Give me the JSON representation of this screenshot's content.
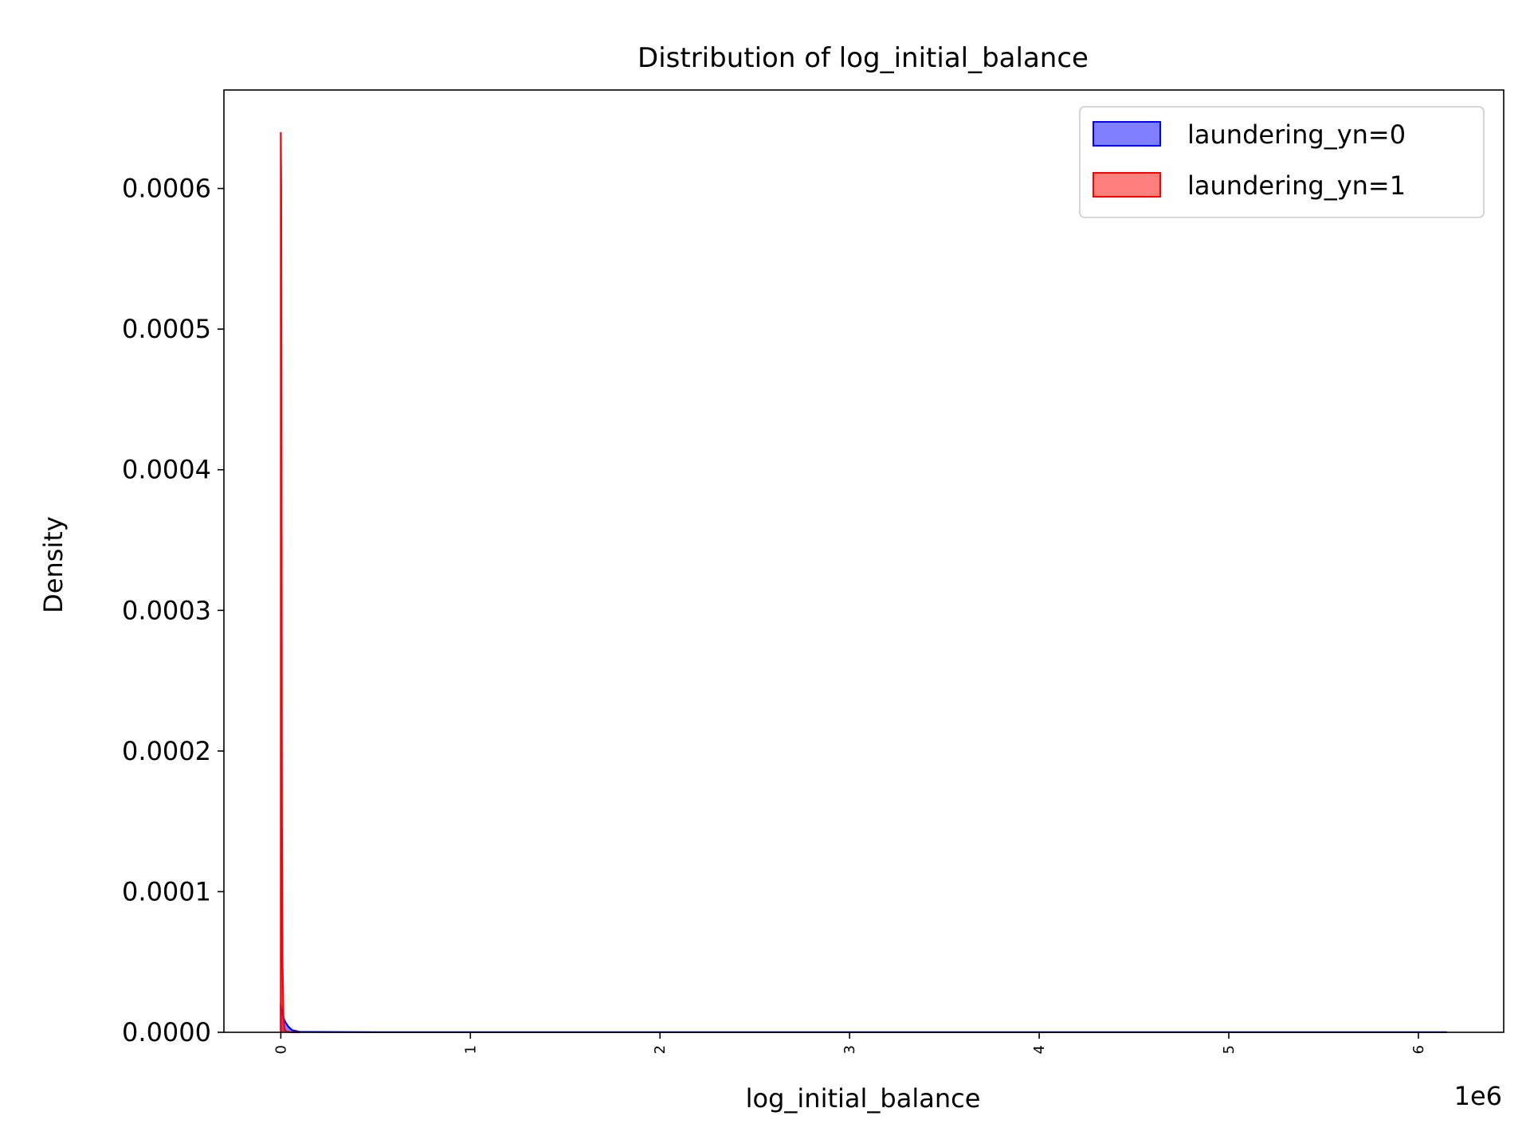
{
  "chart_data": {
    "type": "area",
    "title": "Distribution of log_initial_balance",
    "xlabel": "log_initial_balance",
    "ylabel": "Density",
    "x_offset_label": "1e6",
    "xlim": [
      -300000,
      6450000
    ],
    "ylim": [
      0,
      0.00067
    ],
    "x_ticks": [
      0,
      1000000,
      2000000,
      3000000,
      4000000,
      5000000,
      6000000
    ],
    "x_tick_labels": [
      "0",
      "1",
      "2",
      "3",
      "4",
      "5",
      "6"
    ],
    "y_ticks": [
      0,
      0.0001,
      0.0002,
      0.0003,
      0.0004,
      0.0005,
      0.0006
    ],
    "y_tick_labels": [
      "0.0000",
      "0.0001",
      "0.0002",
      "0.0003",
      "0.0004",
      "0.0005",
      "0.0006"
    ],
    "grid": false,
    "legend_position": "top-right",
    "series": [
      {
        "name": "laundering_yn=0",
        "color": "#0000ff",
        "x": [
          0,
          5000,
          15000,
          25000,
          40000,
          60000,
          100000,
          500000,
          1000000,
          3000000,
          6150000
        ],
        "y": [
          2e-05,
          1.5e-05,
          1e-05,
          7e-06,
          4e-06,
          1.5e-06,
          3e-07,
          1e-07,
          1e-07,
          1e-07,
          1e-07
        ]
      },
      {
        "name": "laundering_yn=1",
        "color": "#ff0000",
        "x": [
          0,
          2000,
          4000,
          6000,
          9000,
          14000,
          20000,
          30000,
          50000,
          100000
        ],
        "y": [
          0.00064,
          0.0006,
          0.0004,
          0.00015,
          5e-05,
          1e-05,
          2e-06,
          5e-07,
          1e-07,
          0
        ]
      }
    ]
  }
}
